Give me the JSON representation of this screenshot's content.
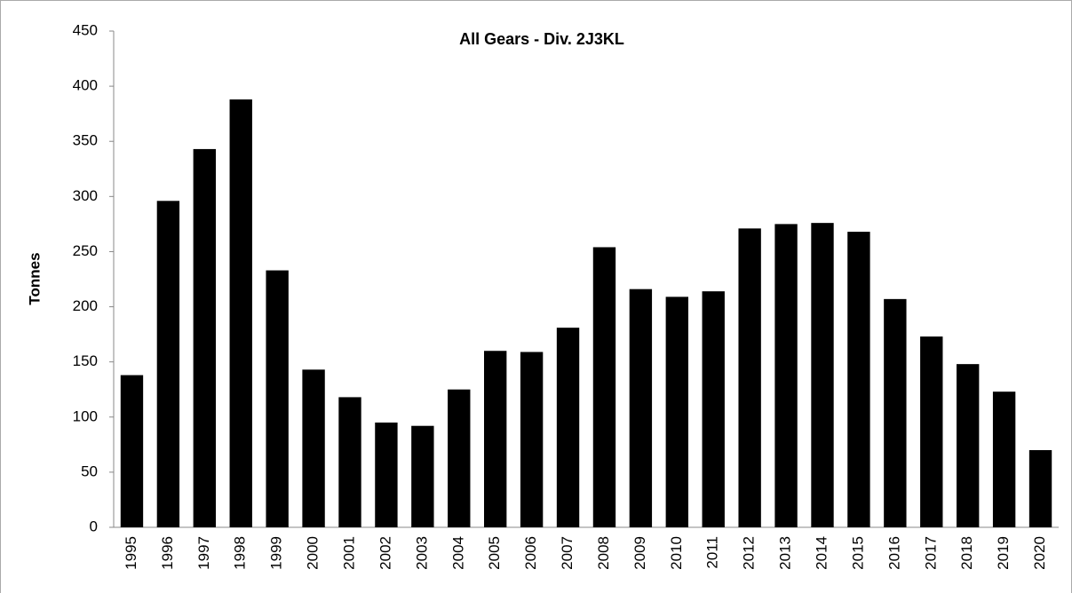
{
  "chart_data": {
    "type": "bar",
    "title": "All Gears - Div. 2J3KL",
    "y_label": "Tonnes",
    "categories": [
      "1995",
      "1996",
      "1997",
      "1998",
      "1999",
      "2000",
      "2001",
      "2002",
      "2003",
      "2004",
      "2005",
      "2006",
      "2007",
      "2008",
      "2009",
      "2010",
      "2011",
      "2012",
      "2013",
      "2014",
      "2015",
      "2016",
      "2017",
      "2018",
      "2019",
      "2020"
    ],
    "values": [
      138,
      296,
      343,
      388,
      233,
      143,
      118,
      95,
      92,
      125,
      160,
      159,
      181,
      254,
      216,
      209,
      214,
      271,
      275,
      276,
      268,
      207,
      173,
      148,
      123,
      70
    ],
    "color": "#000000",
    "ylim": [
      0,
      450
    ],
    "yticks": [
      0,
      50,
      100,
      150,
      200,
      250,
      300,
      350,
      400,
      450
    ],
    "grid": false
  }
}
